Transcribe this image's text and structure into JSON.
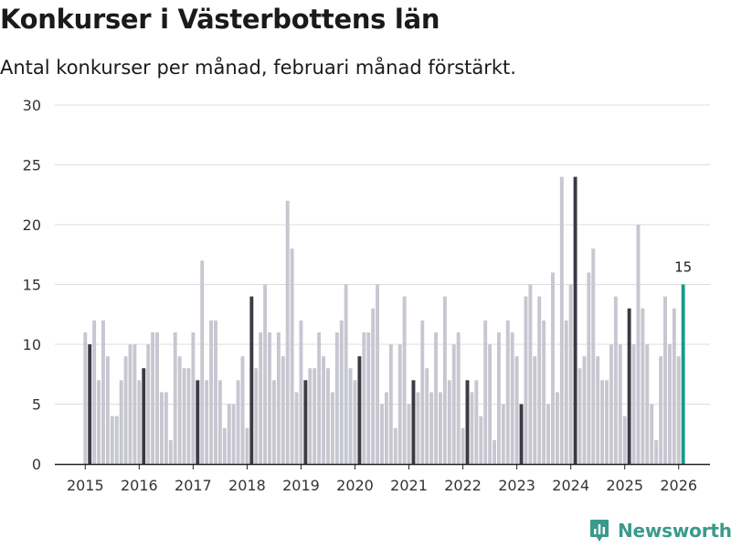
{
  "colors": {
    "bar_default": "#c7c7d1",
    "bar_february": "#3b3a44",
    "bar_latest": "#199a8b",
    "grid": "#dcdcdc",
    "axis": "#222222",
    "brand": "#3a9a8c"
  },
  "brand": {
    "name": "Newsworthy"
  },
  "chart_data": {
    "type": "bar",
    "title": "Konkurser i Västerbottens län",
    "subtitle": "Antal konkurser per månad, februari månad förstärkt.",
    "xlabel": "",
    "ylabel": "",
    "ylim": [
      0,
      30
    ],
    "yticks": [
      0,
      5,
      10,
      15,
      20,
      25,
      30
    ],
    "xticks": [
      "2015",
      "2016",
      "2017",
      "2018",
      "2019",
      "2020",
      "2021",
      "2022",
      "2023",
      "2024",
      "2025",
      "2026"
    ],
    "start": "2015-01",
    "highlight_month": "02",
    "grid": true,
    "categories": [
      "2015-01",
      "2015-02",
      "2015-03",
      "2015-04",
      "2015-05",
      "2015-06",
      "2015-07",
      "2015-08",
      "2015-09",
      "2015-10",
      "2015-11",
      "2015-12",
      "2016-01",
      "2016-02",
      "2016-03",
      "2016-04",
      "2016-05",
      "2016-06",
      "2016-07",
      "2016-08",
      "2016-09",
      "2016-10",
      "2016-11",
      "2016-12",
      "2017-01",
      "2017-02",
      "2017-03",
      "2017-04",
      "2017-05",
      "2017-06",
      "2017-07",
      "2017-08",
      "2017-09",
      "2017-10",
      "2017-11",
      "2017-12",
      "2018-01",
      "2018-02",
      "2018-03",
      "2018-04",
      "2018-05",
      "2018-06",
      "2018-07",
      "2018-08",
      "2018-09",
      "2018-10",
      "2018-11",
      "2018-12",
      "2019-01",
      "2019-02",
      "2019-03",
      "2019-04",
      "2019-05",
      "2019-06",
      "2019-07",
      "2019-08",
      "2019-09",
      "2019-10",
      "2019-11",
      "2019-12",
      "2020-01",
      "2020-02",
      "2020-03",
      "2020-04",
      "2020-05",
      "2020-06",
      "2020-07",
      "2020-08",
      "2020-09",
      "2020-10",
      "2020-11",
      "2020-12",
      "2021-01",
      "2021-02",
      "2021-03",
      "2021-04",
      "2021-05",
      "2021-06",
      "2021-07",
      "2021-08",
      "2021-09",
      "2021-10",
      "2021-11",
      "2021-12",
      "2022-01",
      "2022-02",
      "2022-03",
      "2022-04",
      "2022-05",
      "2022-06",
      "2022-07",
      "2022-08",
      "2022-09",
      "2022-10",
      "2022-11",
      "2022-12",
      "2023-01",
      "2023-02",
      "2023-03",
      "2023-04",
      "2023-05",
      "2023-06",
      "2023-07",
      "2023-08",
      "2023-09",
      "2023-10",
      "2023-11",
      "2023-12",
      "2024-01",
      "2024-02",
      "2024-03",
      "2024-04",
      "2024-05",
      "2024-06",
      "2024-07",
      "2024-08",
      "2024-09",
      "2024-10",
      "2024-11",
      "2024-12",
      "2025-01",
      "2025-02",
      "2025-03",
      "2025-04",
      "2025-05",
      "2025-06",
      "2025-07",
      "2025-08",
      "2025-09",
      "2025-10",
      "2025-11",
      "2025-12",
      "2026-01",
      "2026-02"
    ],
    "values": [
      11,
      10,
      12,
      7,
      12,
      9,
      4,
      4,
      7,
      9,
      10,
      10,
      7,
      8,
      10,
      11,
      11,
      6,
      6,
      2,
      11,
      9,
      8,
      8,
      11,
      7,
      17,
      7,
      12,
      12,
      7,
      3,
      5,
      5,
      7,
      9,
      3,
      14,
      8,
      11,
      15,
      11,
      7,
      11,
      9,
      22,
      18,
      6,
      12,
      7,
      8,
      8,
      11,
      9,
      8,
      6,
      11,
      12,
      15,
      8,
      7,
      9,
      11,
      11,
      13,
      15,
      5,
      6,
      10,
      3,
      10,
      14,
      5,
      7,
      6,
      12,
      8,
      6,
      11,
      6,
      14,
      7,
      10,
      11,
      3,
      7,
      6,
      7,
      4,
      12,
      10,
      2,
      11,
      5,
      12,
      11,
      9,
      5,
      14,
      15,
      9,
      14,
      12,
      5,
      16,
      6,
      24,
      12,
      15,
      24,
      8,
      9,
      16,
      18,
      9,
      7,
      7,
      10,
      14,
      10,
      4,
      13,
      10,
      20,
      13,
      10,
      5,
      2,
      9,
      14,
      10,
      13,
      9,
      15
    ],
    "annotations": [
      {
        "category": "2026-02",
        "text": "15"
      }
    ]
  }
}
